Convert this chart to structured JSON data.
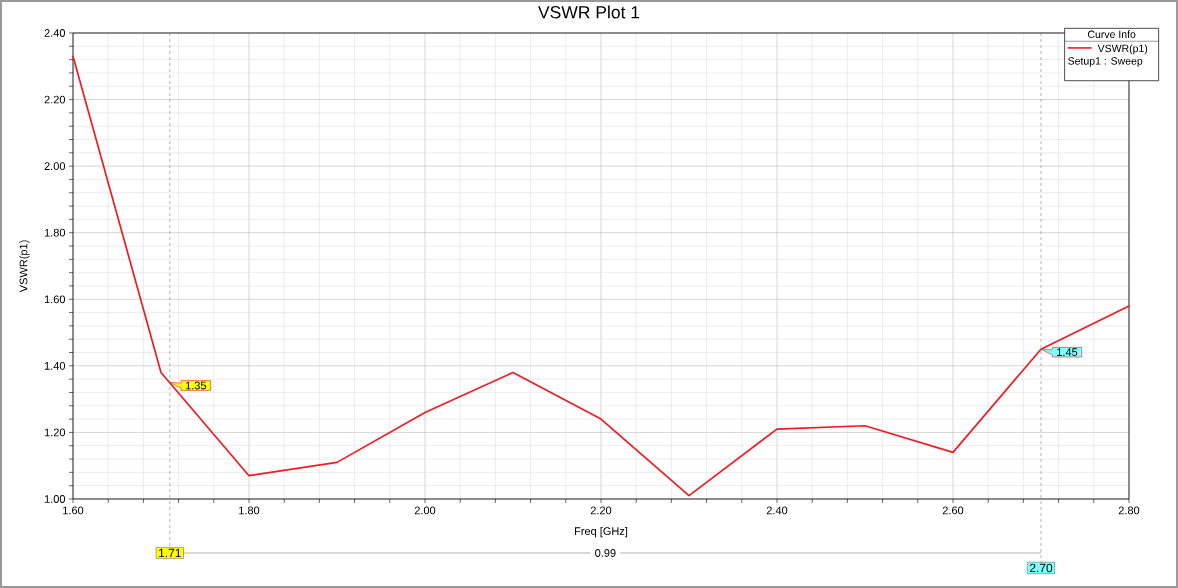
{
  "chart_data": {
    "type": "line",
    "title": "VSWR Plot 1",
    "xlabel": "Freq [GHz]",
    "ylabel": "VSWR(p1)",
    "legend_title": "Curve Info",
    "x": [
      1.6,
      1.7,
      1.8,
      1.9,
      2.0,
      2.1,
      2.2,
      2.3,
      2.4,
      2.5,
      2.6,
      2.7,
      2.8
    ],
    "series": [
      {
        "name": "VSWR(p1) Setup1 : Sweep",
        "color": "#ed1c24",
        "values": [
          2.33,
          1.38,
          1.07,
          1.11,
          1.26,
          1.38,
          1.24,
          1.01,
          1.21,
          1.22,
          1.14,
          1.45,
          1.58
        ]
      }
    ],
    "xlim": [
      1.6,
      2.8
    ],
    "ylim": [
      1.0,
      2.4
    ],
    "xticks": [
      {
        "value": 1.6,
        "label": "1.60"
      },
      {
        "value": 1.8,
        "label": "1.80"
      },
      {
        "value": 2.0,
        "label": "2.00"
      },
      {
        "value": 2.2,
        "label": "2.20"
      },
      {
        "value": 2.4,
        "label": "2.40"
      },
      {
        "value": 2.6,
        "label": "2.60"
      },
      {
        "value": 2.8,
        "label": "2.80"
      }
    ],
    "yticks": [
      {
        "value": 1.0,
        "label": "1.00"
      },
      {
        "value": 1.2,
        "label": "1.20"
      },
      {
        "value": 1.4,
        "label": "1.40"
      },
      {
        "value": 1.6,
        "label": "1.60"
      },
      {
        "value": 1.8,
        "label": "1.80"
      },
      {
        "value": 2.0,
        "label": "2.00"
      },
      {
        "value": 2.2,
        "label": "2.20"
      },
      {
        "value": 2.4,
        "label": "2.40"
      }
    ],
    "grid": true,
    "legend": "top right",
    "line_style": "solid",
    "ref_lines": [
      {
        "axis": "x",
        "value": 1.71,
        "label": "1.71",
        "color": "#808080",
        "line_style": "dashed"
      },
      {
        "axis": "x",
        "value": 2.7,
        "label": "2.70",
        "color": "#808080",
        "line_style": "dashed"
      }
    ],
    "annotations": [
      {
        "text": "1.35",
        "x": 1.71,
        "y": 1.35
      },
      {
        "text": "1.45",
        "x": 2.7,
        "y": 1.45
      },
      "0.99"
    ]
  }
}
